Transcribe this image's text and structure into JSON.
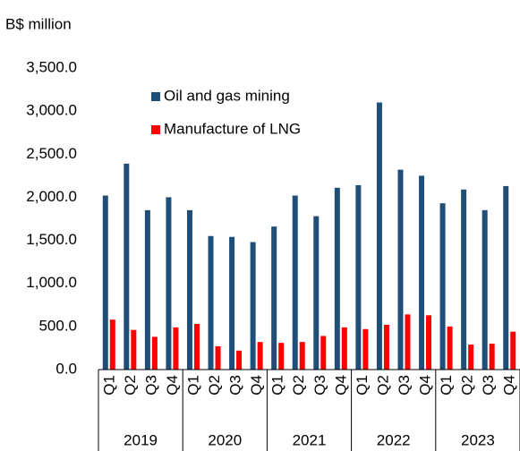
{
  "chart_data": {
    "type": "bar",
    "y_label": "B$ million",
    "categories": [
      "Q1",
      "Q2",
      "Q3",
      "Q4",
      "Q1",
      "Q2",
      "Q3",
      "Q4",
      "Q1",
      "Q2",
      "Q3",
      "Q4",
      "Q1",
      "Q2",
      "Q3",
      "Q4",
      "Q1",
      "Q2",
      "Q3",
      "Q4"
    ],
    "years": [
      "2019",
      "2020",
      "2021",
      "2022",
      "2023"
    ],
    "series": [
      {
        "name": "Oil and gas mining",
        "color": "#1f4e79",
        "values": [
          2020,
          2390,
          1850,
          2000,
          1850,
          1550,
          1540,
          1480,
          1660,
          2020,
          1780,
          2110,
          2140,
          3100,
          2320,
          2250,
          1930,
          2090,
          1850,
          2130
        ]
      },
      {
        "name": "Manufacture of LNG",
        "color": "#ff0000",
        "values": [
          580,
          460,
          380,
          490,
          530,
          270,
          220,
          320,
          310,
          320,
          390,
          490,
          470,
          520,
          640,
          630,
          500,
          290,
          300,
          440
        ]
      }
    ],
    "ylim": [
      0,
      3500
    ],
    "yticks": [
      {
        "value": 0,
        "label": "0.0"
      },
      {
        "value": 500,
        "label": "500.0"
      },
      {
        "value": 1000,
        "label": "1,000.0"
      },
      {
        "value": 1500,
        "label": "1,500.0"
      },
      {
        "value": 2000,
        "label": "2,000.0"
      },
      {
        "value": 2500,
        "label": "2,500.0"
      },
      {
        "value": 3000,
        "label": "3,000.0"
      },
      {
        "value": 3500,
        "label": "3,500.0"
      }
    ],
    "legend": "top-left"
  }
}
